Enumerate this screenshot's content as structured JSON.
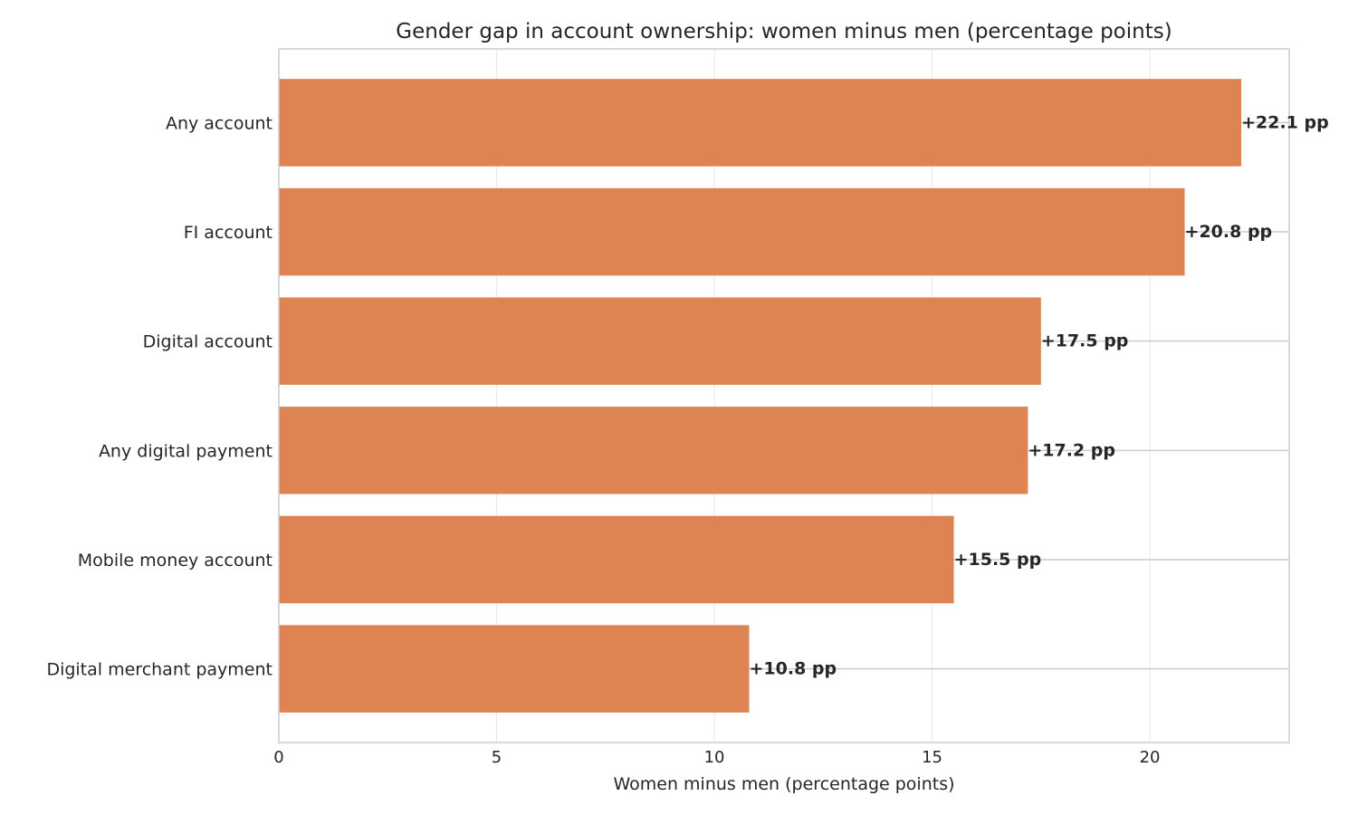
{
  "chart_data": {
    "type": "bar",
    "orientation": "horizontal",
    "title": "Gender gap in account ownership: women minus men (percentage points)",
    "xlabel": "Women minus men (percentage points)",
    "ylabel": "",
    "categories": [
      "Any account",
      "FI account",
      "Digital account",
      "Any digital payment",
      "Mobile money account",
      "Digital merchant payment"
    ],
    "values": [
      22.1,
      20.8,
      17.5,
      17.2,
      15.5,
      10.8
    ],
    "value_labels": [
      "+22.1 pp",
      "+20.8 pp",
      "+17.5 pp",
      "+17.2 pp",
      "+15.5 pp",
      "+10.8 pp"
    ],
    "xlim": [
      0,
      23.2
    ],
    "xticks": [
      0,
      5,
      10,
      15,
      20
    ],
    "xtick_labels": [
      "0",
      "5",
      "10",
      "15",
      "20"
    ],
    "grid": true,
    "colors": {
      "bar": "#dd8452",
      "grid": "#ebebeb",
      "row_line": "#cccccc",
      "frame": "#cccccc",
      "text": "#262626"
    }
  }
}
